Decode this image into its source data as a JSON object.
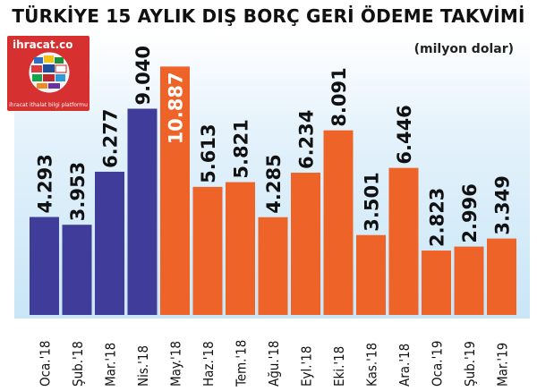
{
  "header": {
    "title": "TÜRKİYE 15 AYLIK DIŞ BORÇ GERİ ÖDEME TAKVİMİ",
    "unit": "(milyon dolar)"
  },
  "logo": {
    "brand": "ihracat.co",
    "tagline": "ihracat ithalat bilgi platformu"
  },
  "colors": {
    "series_2018_early": "#3f3d99",
    "series_rest": "#ee6428",
    "background": "#d6ecf8"
  },
  "chart_data": {
    "type": "bar",
    "title": "TÜRKİYE 15 AYLIK DIŞ BORÇ GERİ ÖDEME TAKVİMİ",
    "ylabel": "(milyon dolar)",
    "categories": [
      "Oca.'18",
      "Şub.'18",
      "Mar.'18",
      "Nis.'18",
      "May.'18",
      "Haz.'18",
      "Tem.'18",
      "Ağu.'18",
      "Eyl.'18",
      "Eki.'18",
      "Kas.'18",
      "Ara.'18",
      "Oca.'19",
      "Şub.'19",
      "Mar.'19"
    ],
    "values": [
      4.293,
      3.953,
      6.277,
      9.04,
      10.887,
      5.613,
      5.821,
      4.285,
      6.234,
      8.091,
      3.501,
      6.446,
      2.823,
      2.996,
      3.349
    ],
    "value_labels": [
      "4.293",
      "3.953",
      "6.277",
      "9.040",
      "10.887",
      "5.613",
      "5.821",
      "4.285",
      "6.234",
      "8.091",
      "3.501",
      "6.446",
      "2.823",
      "2.996",
      "3.349"
    ],
    "bar_colors": [
      "#3f3d99",
      "#3f3d99",
      "#3f3d99",
      "#3f3d99",
      "#ee6428",
      "#ee6428",
      "#ee6428",
      "#ee6428",
      "#ee6428",
      "#ee6428",
      "#ee6428",
      "#ee6428",
      "#ee6428",
      "#ee6428",
      "#ee6428"
    ],
    "ylim": [
      0,
      11.6
    ],
    "grid": false
  }
}
